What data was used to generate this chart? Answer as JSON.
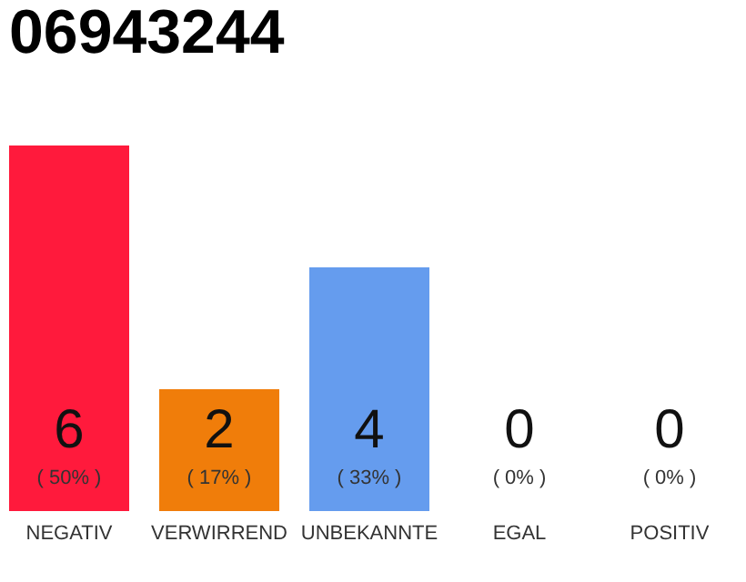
{
  "chart_data": {
    "type": "bar",
    "title": "06943244",
    "categories": [
      "NEGATIV",
      "VERWIRREND",
      "UNBEKANNTE",
      "EGAL",
      "POSITIV"
    ],
    "values": [
      6,
      2,
      4,
      0,
      0
    ],
    "colors": [
      "#ff1a3c",
      "#f07d0a",
      "#659cee",
      "#7dc060",
      "#22a040"
    ],
    "value_labels": [
      "6",
      "2",
      "4",
      "0",
      "0"
    ],
    "annotations": [
      {
        "text": "( 50% )",
        "x": "NEGATIV",
        "y": 0
      },
      {
        "text": "( 17% )",
        "x": "VERWIRREND",
        "y": 0
      },
      {
        "text": "( 33% )",
        "x": "UNBEKANNTE",
        "y": 0
      },
      {
        "text": "( 0% )",
        "x": "EGAL",
        "y": 0
      },
      {
        "text": "( 0% )",
        "x": "POSITIV",
        "y": 0
      }
    ]
  }
}
